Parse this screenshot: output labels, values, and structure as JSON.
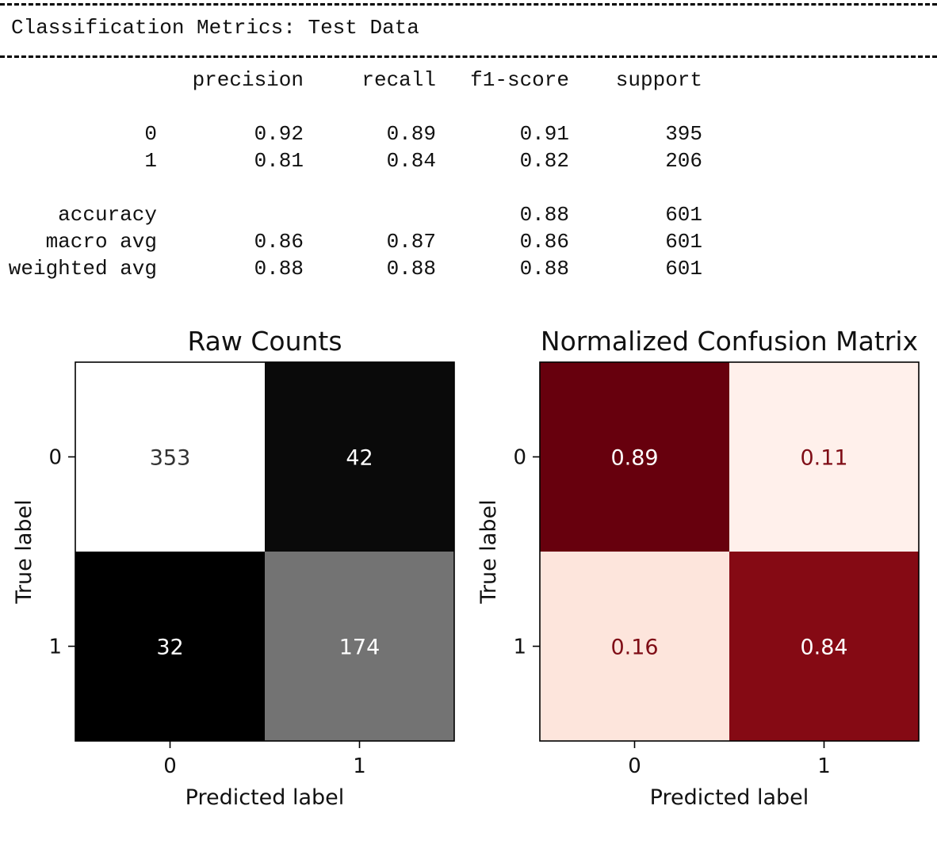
{
  "report": {
    "title": "Classification Metrics: Test Data",
    "headers": [
      "precision",
      "recall",
      "f1-score",
      "support"
    ],
    "rows": [
      {
        "label": "0",
        "values": [
          "0.92",
          "0.89",
          "0.91",
          "395"
        ]
      },
      {
        "label": "1",
        "values": [
          "0.81",
          "0.84",
          "0.82",
          "206"
        ]
      },
      {
        "label": "accuracy",
        "values": [
          "",
          "",
          "0.88",
          "601"
        ]
      },
      {
        "label": "macro avg",
        "values": [
          "0.86",
          "0.87",
          "0.86",
          "601"
        ]
      },
      {
        "label": "weighted avg",
        "values": [
          "0.88",
          "0.88",
          "0.88",
          "601"
        ]
      }
    ]
  },
  "chart_data": [
    {
      "type": "heatmap",
      "title": "Raw Counts",
      "xlabel": "Predicted label",
      "ylabel": "True label",
      "x_ticks": [
        "0",
        "1"
      ],
      "y_ticks": [
        "0",
        "1"
      ],
      "values": [
        [
          353,
          42
        ],
        [
          32,
          174
        ]
      ],
      "colormap": "grayscale",
      "colors": [
        [
          "#ffffff",
          "#0a0a0a"
        ],
        [
          "#000000",
          "#737373"
        ]
      ],
      "text_colors": [
        [
          "#333333",
          "#ffffff"
        ],
        [
          "#ffffff",
          "#ffffff"
        ]
      ],
      "grid": false
    },
    {
      "type": "heatmap",
      "title": "Normalized Confusion Matrix",
      "xlabel": "Predicted label",
      "ylabel": "True label",
      "x_ticks": [
        "0",
        "1"
      ],
      "y_ticks": [
        "0",
        "1"
      ],
      "values": [
        [
          0.89,
          0.11
        ],
        [
          0.16,
          0.84
        ]
      ],
      "colormap": "Reds",
      "colors": [
        [
          "#67000d",
          "#fff0eb"
        ],
        [
          "#fde5dc",
          "#850a14"
        ]
      ],
      "text_colors": [
        [
          "#ffffff",
          "#7f0d16"
        ],
        [
          "#7f0d16",
          "#ffffff"
        ]
      ],
      "grid": false
    }
  ]
}
